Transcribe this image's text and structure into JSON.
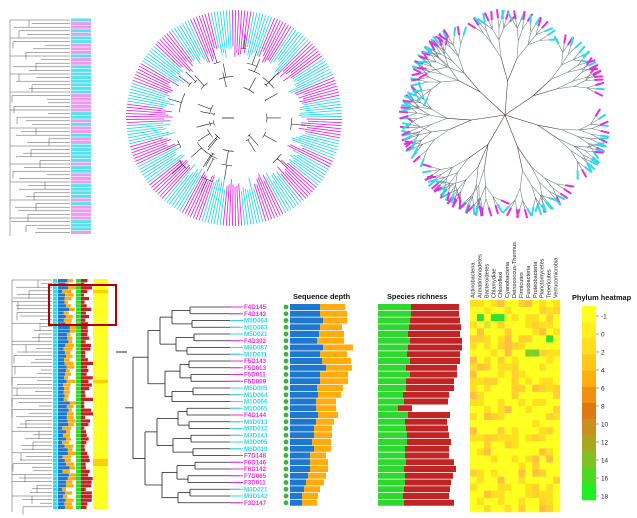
{
  "colors": {
    "magenta": "#e030e0",
    "cyan": "#30d8e8",
    "blue": "#1f78d0",
    "orange": "#ffac10",
    "green": "#2ed82e",
    "red": "#c02424",
    "yellow": "#ffff20",
    "highlight_box": "#b00000"
  },
  "tree": {
    "leaves": [
      {
        "label": "F4D145",
        "group": "F"
      },
      {
        "label": "F4D143",
        "group": "F"
      },
      {
        "label": "M5D064",
        "group": "M"
      },
      {
        "label": "M1D063",
        "group": "M"
      },
      {
        "label": "M5D021",
        "group": "M"
      },
      {
        "label": "F4D302",
        "group": "F"
      },
      {
        "label": "M6D087",
        "group": "M"
      },
      {
        "label": "M1D011",
        "group": "M"
      },
      {
        "label": "F5D143",
        "group": "F"
      },
      {
        "label": "F5D013",
        "group": "F"
      },
      {
        "label": "F5D011",
        "group": "F"
      },
      {
        "label": "F5D009",
        "group": "F"
      },
      {
        "label": "M5D005",
        "group": "M"
      },
      {
        "label": "M1D064",
        "group": "M"
      },
      {
        "label": "M1D066",
        "group": "M"
      },
      {
        "label": "M1D065",
        "group": "M"
      },
      {
        "label": "F4D144",
        "group": "F"
      },
      {
        "label": "M3D013",
        "group": "M"
      },
      {
        "label": "M3D012",
        "group": "M"
      },
      {
        "label": "M3D143",
        "group": "M"
      },
      {
        "label": "M3D005",
        "group": "M"
      },
      {
        "label": "M5D019",
        "group": "M"
      },
      {
        "label": "F7D148",
        "group": "F"
      },
      {
        "label": "F6D146",
        "group": "F"
      },
      {
        "label": "F6D142",
        "group": "F"
      },
      {
        "label": "F7D065",
        "group": "F"
      },
      {
        "label": "F3D011",
        "group": "F"
      },
      {
        "label": "M3D021",
        "group": "M"
      },
      {
        "label": "M3D142",
        "group": "M"
      },
      {
        "label": "F3D147",
        "group": "F"
      }
    ]
  },
  "panels": {
    "sequence_depth": {
      "title": "Sequence depth",
      "series_names": [
        "blue",
        "orange"
      ],
      "blue": [
        30,
        30,
        33,
        30,
        29,
        27,
        33,
        30,
        32,
        36,
        30,
        30,
        27,
        28,
        26,
        26,
        28,
        26,
        24,
        24,
        22,
        24,
        20,
        20,
        20,
        18,
        16,
        14,
        12,
        12
      ],
      "orange": [
        25,
        27,
        24,
        22,
        25,
        27,
        30,
        27,
        29,
        26,
        28,
        28,
        26,
        23,
        20,
        20,
        20,
        18,
        18,
        18,
        19,
        17,
        16,
        18,
        18,
        18,
        18,
        16,
        16,
        15
      ]
    },
    "species_richness": {
      "title": "Species richness",
      "green": [
        33,
        33,
        32,
        31,
        30,
        32,
        30,
        29,
        32,
        28,
        32,
        28,
        28,
        25,
        26,
        20,
        30,
        27,
        28,
        29,
        29,
        27,
        27,
        28,
        26,
        27,
        27,
        26,
        25,
        26
      ],
      "red": [
        48,
        48,
        50,
        52,
        52,
        52,
        54,
        53,
        50,
        51,
        47,
        48,
        48,
        46,
        44,
        14,
        42,
        42,
        42,
        42,
        44,
        44,
        44,
        48,
        52,
        48,
        46,
        46,
        46,
        50
      ]
    },
    "heatmap": {
      "phyla": [
        "Actinobacteria",
        "Armatimonadetes",
        "Bacteroidetes",
        "Chlamydiae",
        "Chloroflexi",
        "Cyanobacteria",
        "Deinococcus-Thermus",
        "Firmicutes",
        "Fusobacteria",
        "Proteobacteria",
        "Planctomycetes",
        "Tenericutes",
        "Verrucomicrobia"
      ],
      "legend_title": "Phylum  heatmap",
      "legend_ticks": [
        "-1",
        "0",
        "2",
        "4",
        "6",
        "8",
        "10",
        "12",
        "14",
        "16",
        "18"
      ]
    }
  }
}
